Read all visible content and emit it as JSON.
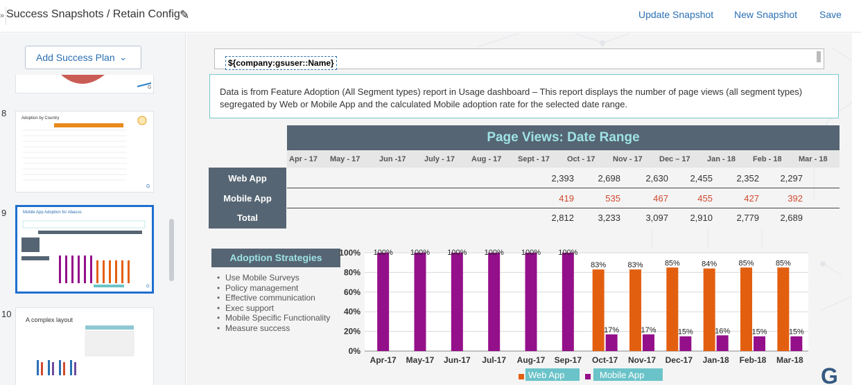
{
  "header": {
    "title": "Success Snapshots / Retain Config",
    "actions": [
      "Update Snapshot",
      "New Snapshot",
      "Save"
    ]
  },
  "sidebar": {
    "add_plan_label": "Add Success Plan",
    "slides": [
      {
        "number": "8",
        "title": "Adoption by Country"
      },
      {
        "number": "9",
        "title": "Mobile App Adoption for Abacus"
      },
      {
        "number": "10",
        "title": "A complex layout"
      }
    ]
  },
  "slide": {
    "name_token": "${company:gsuser::Name}",
    "description": "Data is from Feature Adoption (All Segment types) report in Usage dashboard – This report displays the number of page views (all segment types) segregated by Web or Mobile App and the calculated Mobile adoption rate for the selected date range.",
    "table": {
      "title": "Page Views: Date Range",
      "months": [
        "Apr - 17",
        "May - 17",
        "Jun -17",
        "July - 17",
        "Aug - 17",
        "Sept - 17",
        "Oct - 17",
        "Nov - 17",
        "Dec – 17",
        "Jan - 18",
        "Feb - 18",
        "Mar - 18"
      ],
      "rows": [
        {
          "label": "Web App",
          "values": [
            "",
            "",
            "",
            "",
            "",
            "",
            "2,393",
            "2,698",
            "2,630",
            "2,455",
            "2,352",
            "2,297"
          ]
        },
        {
          "label": "Mobile App",
          "values": [
            "",
            "",
            "",
            "",
            "",
            "",
            "419",
            "535",
            "467",
            "455",
            "427",
            "392"
          ]
        },
        {
          "label": "Total",
          "values": [
            "",
            "",
            "",
            "",
            "",
            "",
            "2,812",
            "3,233",
            "3,097",
            "2,910",
            "2,779",
            "2,689"
          ]
        }
      ]
    },
    "strategies": {
      "title": "Adoption Strategies",
      "items": [
        "Use Mobile Surveys",
        "Policy management",
        "Effective communication",
        "Exec support",
        "Mobile Specific Functionality",
        "Measure success"
      ]
    },
    "logo": "G"
  },
  "chart_data": {
    "type": "bar",
    "categories": [
      "Apr-17",
      "May-17",
      "Jun-17",
      "Jul-17",
      "Aug-17",
      "Sep-17",
      "Oct-17",
      "Nov-17",
      "Dec-17",
      "Jan-18",
      "Feb-18",
      "Mar-18"
    ],
    "series": [
      {
        "name": "Web App",
        "values": [
          null,
          null,
          null,
          null,
          null,
          null,
          83,
          83,
          85,
          84,
          85,
          85
        ]
      },
      {
        "name": "Mobile App",
        "values": [
          100,
          100,
          100,
          100,
          100,
          100,
          17,
          17,
          15,
          16,
          15,
          15
        ]
      }
    ],
    "data_labels": [
      [
        "",
        "",
        "",
        "",
        "",
        "",
        "83%",
        "83%",
        "85%",
        "84%",
        "85%",
        "85%"
      ],
      [
        "100%",
        "100%",
        "100%",
        "100%",
        "100%",
        "100%",
        "17%",
        "17%",
        "15%",
        "16%",
        "15%",
        "15%"
      ]
    ],
    "y_ticks": [
      "0%",
      "20%",
      "40%",
      "60%",
      "80%",
      "100%"
    ],
    "ylim": [
      0,
      100
    ],
    "grid": true,
    "legend_position": "bottom",
    "colors": {
      "web": "#e35f10",
      "mobile": "#940f8a",
      "legend_bg": "#6ac3c8"
    }
  }
}
